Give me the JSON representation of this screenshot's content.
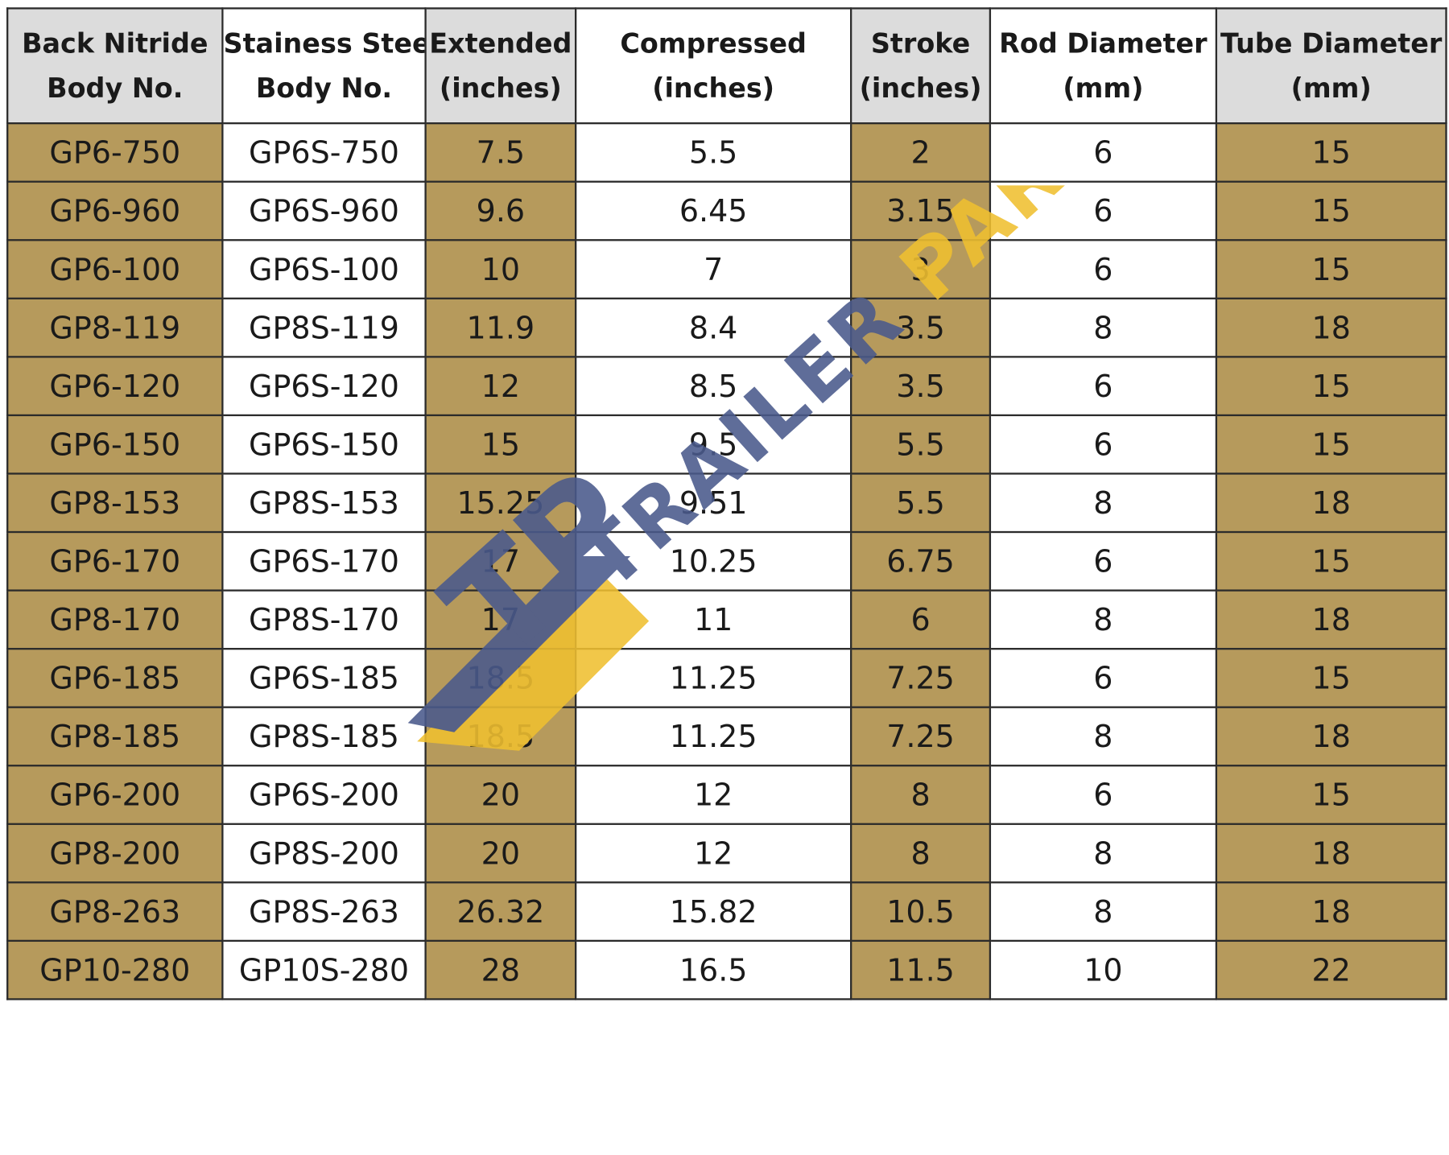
{
  "columns": [
    {
      "line1": "Back Nitride",
      "line2": "Body No."
    },
    {
      "line1": "Stainess Stee",
      "line2": "Body No."
    },
    {
      "line1": "Extended",
      "line2": "(inches)"
    },
    {
      "line1": "Compressed",
      "line2": "(inches)"
    },
    {
      "line1": "Stroke",
      "line2": "(inches)"
    },
    {
      "line1": "Rod Diameter",
      "line2": "(mm)"
    },
    {
      "line1": "Tube Diameter",
      "line2": "(mm)"
    }
  ],
  "rows": [
    [
      "GP6-750",
      "GP6S-750",
      "7.5",
      "5.5",
      "2",
      "6",
      "15"
    ],
    [
      "GP6-960",
      "GP6S-960",
      "9.6",
      "6.45",
      "3.15",
      "6",
      "15"
    ],
    [
      "GP6-100",
      "GP6S-100",
      "10",
      "7",
      "3",
      "6",
      "15"
    ],
    [
      "GP8-119",
      "GP8S-119",
      "11.9",
      "8.4",
      "3.5",
      "8",
      "18"
    ],
    [
      "GP6-120",
      "GP6S-120",
      "12",
      "8.5",
      "3.5",
      "6",
      "15"
    ],
    [
      "GP6-150",
      "GP6S-150",
      "15",
      "9.5",
      "5.5",
      "6",
      "15"
    ],
    [
      "GP8-153",
      "GP8S-153",
      "15.25",
      "9.51",
      "5.5",
      "8",
      "18"
    ],
    [
      "GP6-170",
      "GP6S-170",
      "17",
      "10.25",
      "6.75",
      "6",
      "15"
    ],
    [
      "GP8-170",
      "GP8S-170",
      "17",
      "11",
      "6",
      "8",
      "18"
    ],
    [
      "GP6-185",
      "GP6S-185",
      "18.5",
      "11.25",
      "7.25",
      "6",
      "15"
    ],
    [
      "GP8-185",
      "GP8S-185",
      "18.5",
      "11.25",
      "7.25",
      "8",
      "18"
    ],
    [
      "GP6-200",
      "GP6S-200",
      "20",
      "12",
      "8",
      "6",
      "15"
    ],
    [
      "GP8-200",
      "GP8S-200",
      "20",
      "12",
      "8",
      "8",
      "18"
    ],
    [
      "GP8-263",
      "GP8S-263",
      "26.32",
      "15.82",
      "10.5",
      "8",
      "18"
    ],
    [
      "GP10-280",
      "GP10S-280",
      "28",
      "16.5",
      "11.5",
      "10",
      "22"
    ]
  ],
  "watermark": {
    "logo_text": "TP",
    "brand_text": "TRAILER PARTS",
    "colors": {
      "blue": "#4a5a8c",
      "yellow": "#f0c030"
    }
  },
  "colors": {
    "gold_column": "#b69a5c",
    "header_gray": "#dcdcdc",
    "white_column": "#ffffff",
    "grid_line": "#2b2b2b"
  }
}
